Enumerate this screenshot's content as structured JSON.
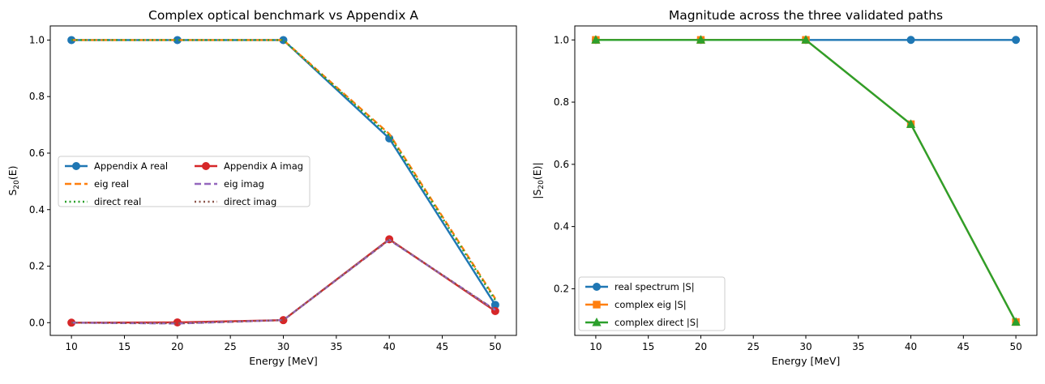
{
  "chart_data": [
    {
      "type": "line",
      "title": "Complex optical benchmark vs Appendix A",
      "xlabel": "Energy [MeV]",
      "ylabel": "S",
      "ylabel_sub": "20",
      "ylabel_suffix": "(E)",
      "x": [
        10,
        20,
        30,
        40,
        50
      ],
      "xlim": [
        8,
        52
      ],
      "ylim": [
        -0.045,
        1.05
      ],
      "xticks": [
        10,
        15,
        20,
        25,
        30,
        35,
        40,
        45,
        50
      ],
      "yticks": [
        0.0,
        0.2,
        0.4,
        0.6,
        0.8,
        1.0
      ],
      "grid": false,
      "legend_position": "center-left",
      "series": [
        {
          "name": "Appendix A real",
          "values": [
            1.0,
            1.0,
            1.0,
            0.652,
            0.063
          ],
          "color": "#1f77b4",
          "style": "solid-marker-circle"
        },
        {
          "name": "eig real",
          "values": [
            1.0,
            1.0,
            1.0,
            0.668,
            0.085
          ],
          "color": "#ff7f0e",
          "style": "dashed"
        },
        {
          "name": "direct real",
          "values": [
            1.0,
            1.0,
            1.0,
            0.662,
            0.08
          ],
          "color": "#2ca02c",
          "style": "dotted"
        },
        {
          "name": "Appendix A imag",
          "values": [
            0.0,
            0.001,
            0.009,
            0.295,
            0.041
          ],
          "color": "#d62728",
          "style": "solid-marker-circle"
        },
        {
          "name": "eig imag",
          "values": [
            0.0,
            -0.003,
            0.009,
            0.293,
            0.045
          ],
          "color": "#9467bd",
          "style": "dashed"
        },
        {
          "name": "direct imag",
          "values": [
            0.0,
            -0.002,
            0.009,
            0.294,
            0.044
          ],
          "color": "#8c564b",
          "style": "dotted"
        }
      ]
    },
    {
      "type": "line",
      "title": "Magnitude across the three validated paths",
      "xlabel": "Energy [MeV]",
      "ylabel": "|S",
      "ylabel_sub": "20",
      "ylabel_suffix": "(E)|",
      "x": [
        10,
        20,
        30,
        40,
        50
      ],
      "xlim": [
        8,
        52
      ],
      "ylim": [
        0.05,
        1.045
      ],
      "xticks": [
        10,
        15,
        20,
        25,
        30,
        35,
        40,
        45,
        50
      ],
      "yticks": [
        0.2,
        0.4,
        0.6,
        0.8,
        1.0
      ],
      "grid": false,
      "legend_position": "lower-left",
      "series": [
        {
          "name": "real spectrum |S|",
          "values": [
            1.0,
            1.0,
            1.0,
            1.0,
            1.0
          ],
          "color": "#1f77b4",
          "style": "solid-marker-circle"
        },
        {
          "name": "complex eig |S|",
          "values": [
            1.0,
            1.0,
            1.0,
            0.729,
            0.093
          ],
          "color": "#ff7f0e",
          "style": "solid-marker-square"
        },
        {
          "name": "complex direct |S|",
          "values": [
            1.0,
            1.0,
            1.0,
            0.729,
            0.093
          ],
          "color": "#2ca02c",
          "style": "solid-marker-triangle"
        }
      ]
    }
  ]
}
